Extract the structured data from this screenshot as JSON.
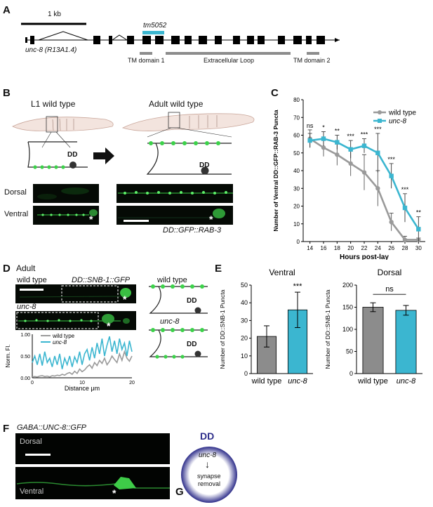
{
  "panels": {
    "A": "A",
    "B": "B",
    "C": "C",
    "D": "D",
    "E": "E",
    "F": "F",
    "G": "G"
  },
  "panel_a": {
    "scale_label": "1 kb",
    "allele_label": "tm5052",
    "gene_label": "unc-8 (R13A1.4)",
    "domains": [
      "TM domain 1",
      "Extracellular Loop",
      "TM domain 2"
    ]
  },
  "panel_b": {
    "l1_title": "L1 wild type",
    "adult_title": "Adult wild type",
    "neuron_label_1": "DD",
    "neuron_label_2": "DD",
    "dorsal_label": "Dorsal",
    "ventral_label": "Ventral",
    "reporter_label": "DD::GFP::RAB-3",
    "asterisk": "*"
  },
  "panel_d": {
    "title": "Adult",
    "wt_label": "wild type",
    "reporter_label": "DD::SNB-1::GFP",
    "mutant_label": "unc-8",
    "schematic_wt_label": "wild type",
    "schematic_mut_label": "unc-8",
    "neuron_label_1": "DD",
    "neuron_label_2": "DD",
    "asterisk": "*",
    "plot_ylabel": "Norm. Fl.",
    "plot_xlabel": "Distance μm",
    "legend_wt": "wild type",
    "legend_mut": "unc-8",
    "y_ticks": [
      "1.00",
      "0.50",
      "0.00"
    ],
    "x_ticks": [
      "0",
      "10",
      "20"
    ]
  },
  "panel_f": {
    "title": "GABA::UNC-8::GFP",
    "dorsal_label": "Dorsal",
    "ventral_label": "Ventral",
    "asterisk": "*"
  },
  "panel_g": {
    "neuron_label": "DD",
    "gene_label": "unc-8",
    "arrow": "↓",
    "outcome_line1": "synapse",
    "outcome_line2": "removal"
  },
  "colors": {
    "wild_type": "#9a9a9a",
    "unc8": "#3bb6d0",
    "gfp": "#3cd24a",
    "dd_ring": "#2e2e8a"
  },
  "chart_data": [
    {
      "id": "C",
      "type": "line",
      "ylabel": "Number of Ventral DD::GFP::RAB-3 Puncta",
      "xlabel": "Hours post-lay",
      "x": [
        14,
        16,
        18,
        20,
        22,
        24,
        26,
        28,
        30
      ],
      "xlim": [
        13,
        31
      ],
      "ylim": [
        0,
        80
      ],
      "y_ticks": [
        0,
        10,
        20,
        30,
        40,
        50,
        60,
        70,
        80
      ],
      "series": [
        {
          "name": "wild type",
          "color": "#9a9a9a",
          "values": [
            58,
            53,
            49,
            44,
            39,
            30,
            11,
            1,
            1
          ],
          "errors": [
            5,
            5,
            6,
            7,
            10,
            10,
            5,
            2,
            1
          ]
        },
        {
          "name": "unc-8",
          "color": "#3bb6d0",
          "values": [
            57,
            58,
            56,
            52,
            54,
            50,
            37,
            19,
            7
          ],
          "errors": [
            4,
            4,
            4,
            5,
            4,
            11,
            7,
            8,
            7
          ]
        }
      ],
      "significance": [
        "ns",
        "*",
        "**",
        "***",
        "***",
        "***",
        "***",
        "***",
        "**"
      ],
      "legend_position": "top-right"
    },
    {
      "id": "D-trace",
      "type": "line",
      "xlabel": "Distance μm",
      "ylabel": "Norm. Fl.",
      "xlim": [
        0,
        20
      ],
      "ylim": [
        0,
        1
      ],
      "series": [
        {
          "name": "wild type",
          "color": "#9a9a9a",
          "x": [
            0,
            0.5,
            1,
            1.5,
            2,
            2.5,
            3,
            3.5,
            4,
            4.5,
            5,
            5.5,
            6,
            6.5,
            7,
            7.5,
            8,
            8.5,
            9,
            9.5,
            10,
            10.5,
            11,
            11.5,
            12,
            12.5,
            13,
            13.5,
            14,
            14.5,
            15,
            15.5,
            16,
            16.5,
            17,
            17.5,
            18,
            18.5,
            19,
            19.5,
            20
          ],
          "values": [
            0.02,
            0.03,
            0.02,
            0.04,
            0.05,
            0.03,
            0.04,
            0.02,
            0.05,
            0.04,
            0.06,
            0.05,
            0.08,
            0.06,
            0.1,
            0.12,
            0.08,
            0.15,
            0.1,
            0.2,
            0.14,
            0.18,
            0.25,
            0.3,
            0.22,
            0.35,
            0.28,
            0.4,
            0.33,
            0.45,
            0.3,
            0.38,
            0.5,
            0.42,
            0.35,
            0.55,
            0.4,
            0.6,
            0.45,
            0.38,
            0.5
          ]
        },
        {
          "name": "unc-8",
          "color": "#3bb6d0",
          "x": [
            0,
            0.5,
            1,
            1.5,
            2,
            2.5,
            3,
            3.5,
            4,
            4.5,
            5,
            5.5,
            6,
            6.5,
            7,
            7.5,
            8,
            8.5,
            9,
            9.5,
            10,
            10.5,
            11,
            11.5,
            12,
            12.5,
            13,
            13.5,
            14,
            14.5,
            15,
            15.5,
            16,
            16.5,
            17,
            17.5,
            18,
            18.5,
            19,
            19.5,
            20
          ],
          "values": [
            0.35,
            0.5,
            0.3,
            0.55,
            0.28,
            0.6,
            0.35,
            0.45,
            0.25,
            0.5,
            0.3,
            0.55,
            0.2,
            0.45,
            0.3,
            0.5,
            0.25,
            0.48,
            0.35,
            0.6,
            0.3,
            0.55,
            0.65,
            0.4,
            0.7,
            0.45,
            0.8,
            0.55,
            0.9,
            0.5,
            0.75,
            0.95,
            0.6,
            0.85,
            0.55,
            0.9,
            0.65,
            0.8,
            0.5,
            0.85,
            0.6
          ]
        }
      ]
    },
    {
      "id": "E-ventral",
      "type": "bar",
      "title": "Ventral",
      "ylabel": "Number of DD::SNB-1 Puncta",
      "categories": [
        "wild type",
        "unc-8"
      ],
      "values": [
        21,
        36
      ],
      "errors": [
        6,
        10
      ],
      "colors": [
        "#8c8c8c",
        "#3bb6d0"
      ],
      "ylim": [
        0,
        50
      ],
      "y_ticks": [
        0,
        10,
        20,
        30,
        40,
        50
      ],
      "significance": [
        "",
        "***"
      ]
    },
    {
      "id": "E-dorsal",
      "type": "bar",
      "title": "Dorsal",
      "ylabel": "Number of DD::SNB-1 Puncta",
      "categories": [
        "wild type",
        "unc-8"
      ],
      "values": [
        150,
        143
      ],
      "errors": [
        10,
        11
      ],
      "colors": [
        "#8c8c8c",
        "#3bb6d0"
      ],
      "ylim": [
        0,
        200
      ],
      "y_ticks": [
        0,
        50,
        100,
        150,
        200
      ],
      "bracket_label": "ns"
    }
  ]
}
